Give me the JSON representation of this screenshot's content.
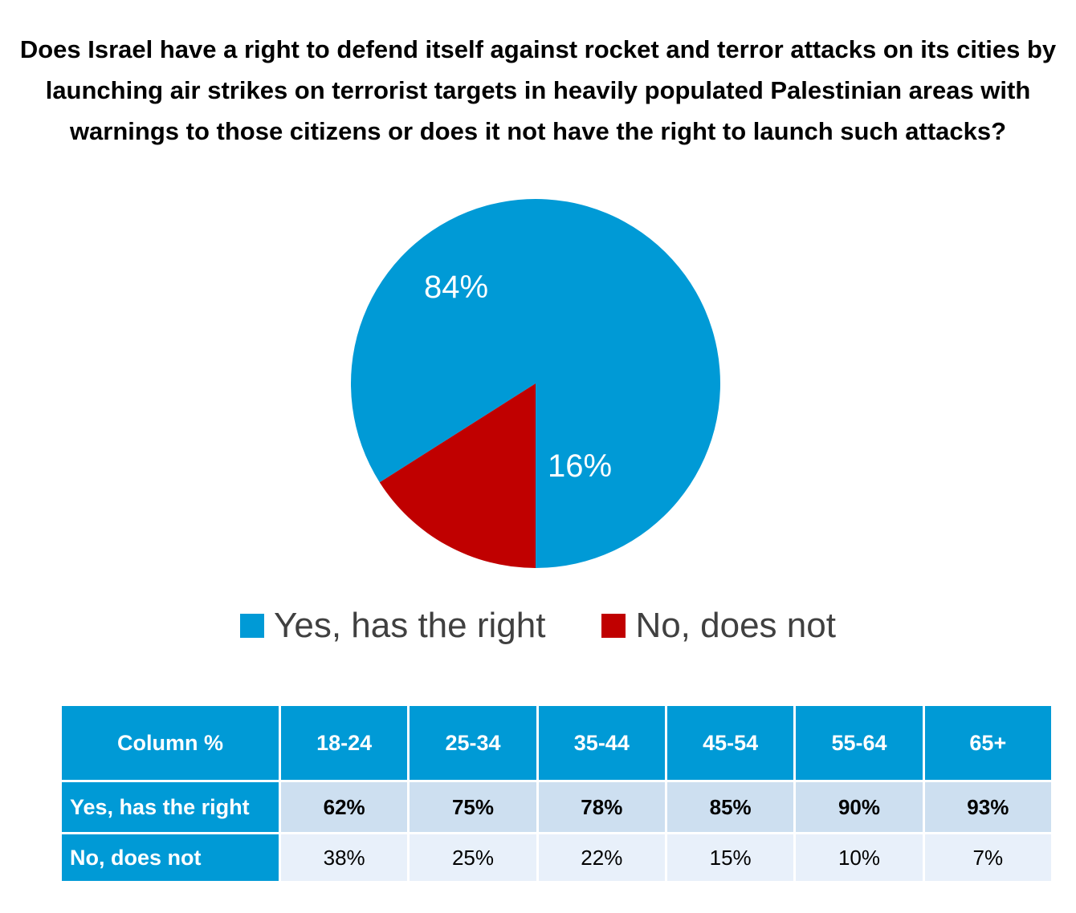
{
  "chart_data": {
    "type": "pie",
    "title": "Does Israel have a right to defend itself against rocket and terror attacks on its cities by launching air strikes on terrorist targets in heavily populated Palestinian areas with warnings to those citizens or does it not have the right to launch such attacks?",
    "slices": [
      {
        "name": "Yes, has the right",
        "value": 84,
        "label": "84%",
        "color": "#009ad6"
      },
      {
        "name": "No, does not",
        "value": 16,
        "label": "16%",
        "color": "#c00000"
      }
    ],
    "legend_position": "bottom"
  },
  "table": {
    "corner": "Column %",
    "columns": [
      "18-24",
      "25-34",
      "35-44",
      "45-54",
      "55-64",
      "65+"
    ],
    "rows": [
      {
        "label": "Yes, has the right",
        "values": [
          "62%",
          "75%",
          "78%",
          "85%",
          "90%",
          "93%"
        ]
      },
      {
        "label": "No, does not",
        "values": [
          "38%",
          "25%",
          "22%",
          "15%",
          "10%",
          "7%"
        ]
      }
    ]
  }
}
